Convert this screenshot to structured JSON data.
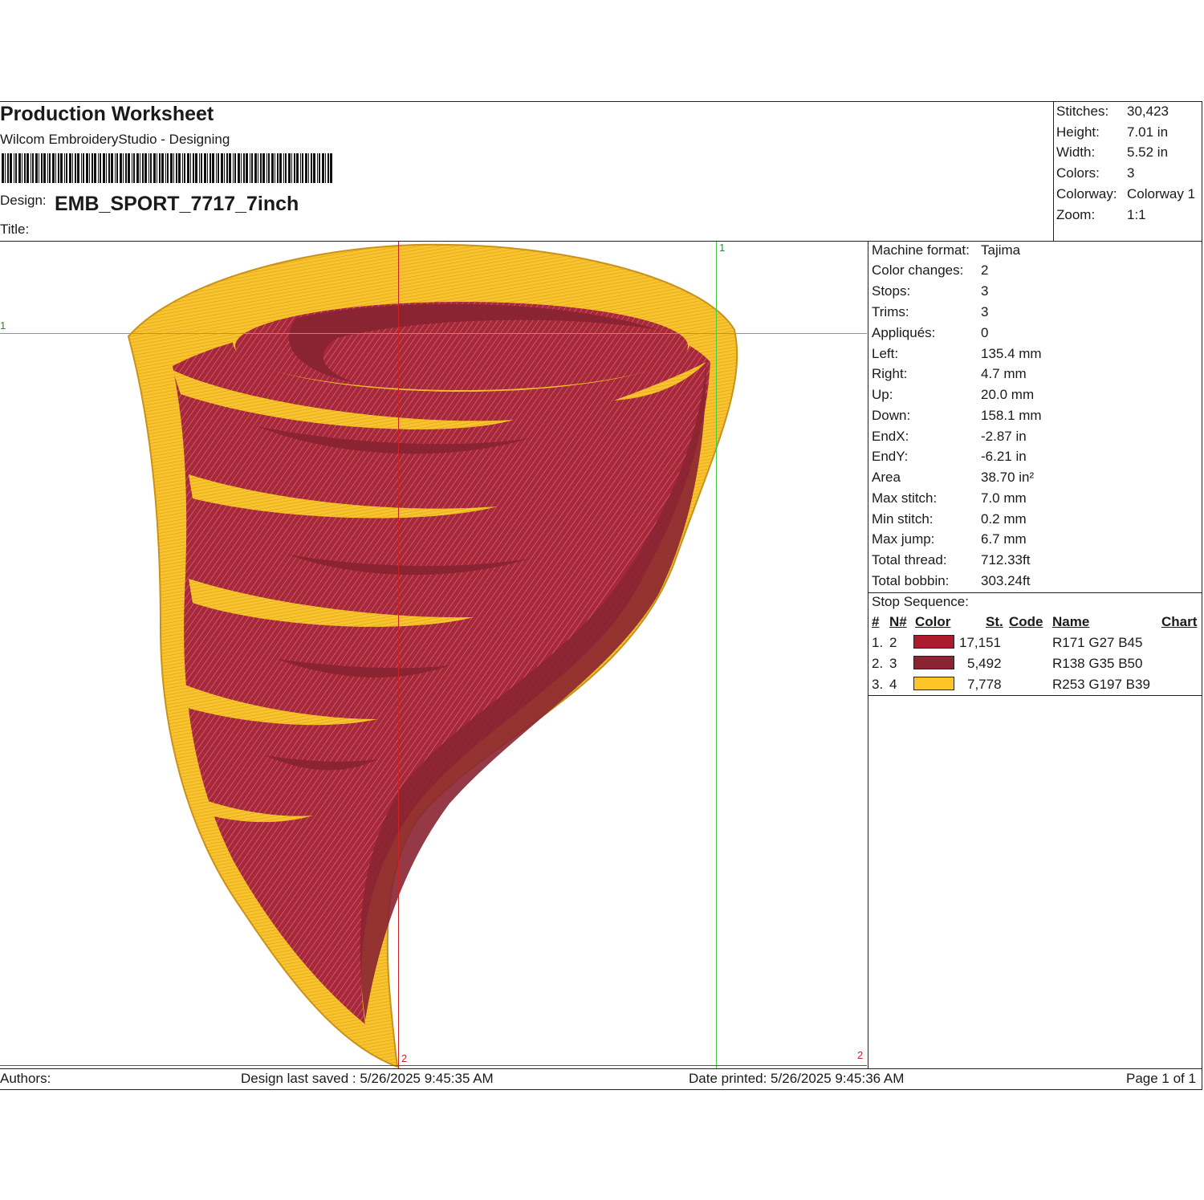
{
  "header": {
    "title": "Production Worksheet",
    "subtitle": "Wilcom EmbroideryStudio - Designing",
    "design_label": "Design:",
    "design_name": "EMB_SPORT_7717_7inch",
    "title_label": "Title:"
  },
  "summary": [
    {
      "label": "Stitches:",
      "value": "30,423"
    },
    {
      "label": "Height:",
      "value": "7.01 in"
    },
    {
      "label": "Width:",
      "value": "5.52 in"
    },
    {
      "label": "Colors:",
      "value": "3"
    },
    {
      "label": "Colorway:",
      "value": "Colorway 1"
    },
    {
      "label": "Zoom:",
      "value": "1:1"
    }
  ],
  "details": [
    {
      "label": "Machine format:",
      "value": "Tajima"
    },
    {
      "label": "Color changes:",
      "value": "2"
    },
    {
      "label": "Stops:",
      "value": "3"
    },
    {
      "label": "Trims:",
      "value": "3"
    },
    {
      "label": "Appliqués:",
      "value": "0"
    },
    {
      "label": "Left:",
      "value": "135.4 mm"
    },
    {
      "label": "Right:",
      "value": "4.7 mm"
    },
    {
      "label": "Up:",
      "value": "20.0 mm"
    },
    {
      "label": "Down:",
      "value": "158.1 mm"
    },
    {
      "label": "EndX:",
      "value": "-2.87 in"
    },
    {
      "label": "EndY:",
      "value": "-6.21 in"
    },
    {
      "label": "Area",
      "value": " 38.70 in²"
    },
    {
      "label": "Max stitch:",
      "value": "7.0 mm"
    },
    {
      "label": "Min stitch:",
      "value": "0.2 mm"
    },
    {
      "label": "Max jump:",
      "value": "6.7 mm"
    },
    {
      "label": "Total thread:",
      "value": "712.33ft"
    },
    {
      "label": "Total bobbin:",
      "value": "303.24ft"
    }
  ],
  "stop_sequence": {
    "caption": "Stop Sequence:",
    "headers": {
      "num": "#",
      "needle": "N#",
      "color": "Color",
      "stitches": "St.",
      "code": "Code",
      "name": "Name",
      "chart": "Chart"
    },
    "rows": [
      {
        "num": "1.",
        "needle": "2",
        "color": "#ab1b2d",
        "stitches": "17,151",
        "name": "R171 G27 B45"
      },
      {
        "num": "2.",
        "needle": "3",
        "color": "#8a2332",
        "stitches": "5,492",
        "name": "R138 G35 B50"
      },
      {
        "num": "3.",
        "needle": "4",
        "color": "#fdc527",
        "stitches": "7,778",
        "name": "R253 G197 B39"
      }
    ]
  },
  "markers": {
    "top_green": "1",
    "left_green": "1",
    "bottom_red": "2",
    "bottom_right_red": "2"
  },
  "footer": {
    "authors": "Authors:",
    "last_saved": "Design last saved : 5/26/2025 9:45:35 AM",
    "printed": "Date printed: 5/26/2025 9:45:36 AM",
    "page": "Page 1 of 1"
  },
  "colors": {
    "stitch_red": "#ab1b2d",
    "stitch_dark_red": "#8a2332",
    "stitch_gold": "#fdc527",
    "guide_green": "#44cc44",
    "guide_red": "#cc2222"
  }
}
